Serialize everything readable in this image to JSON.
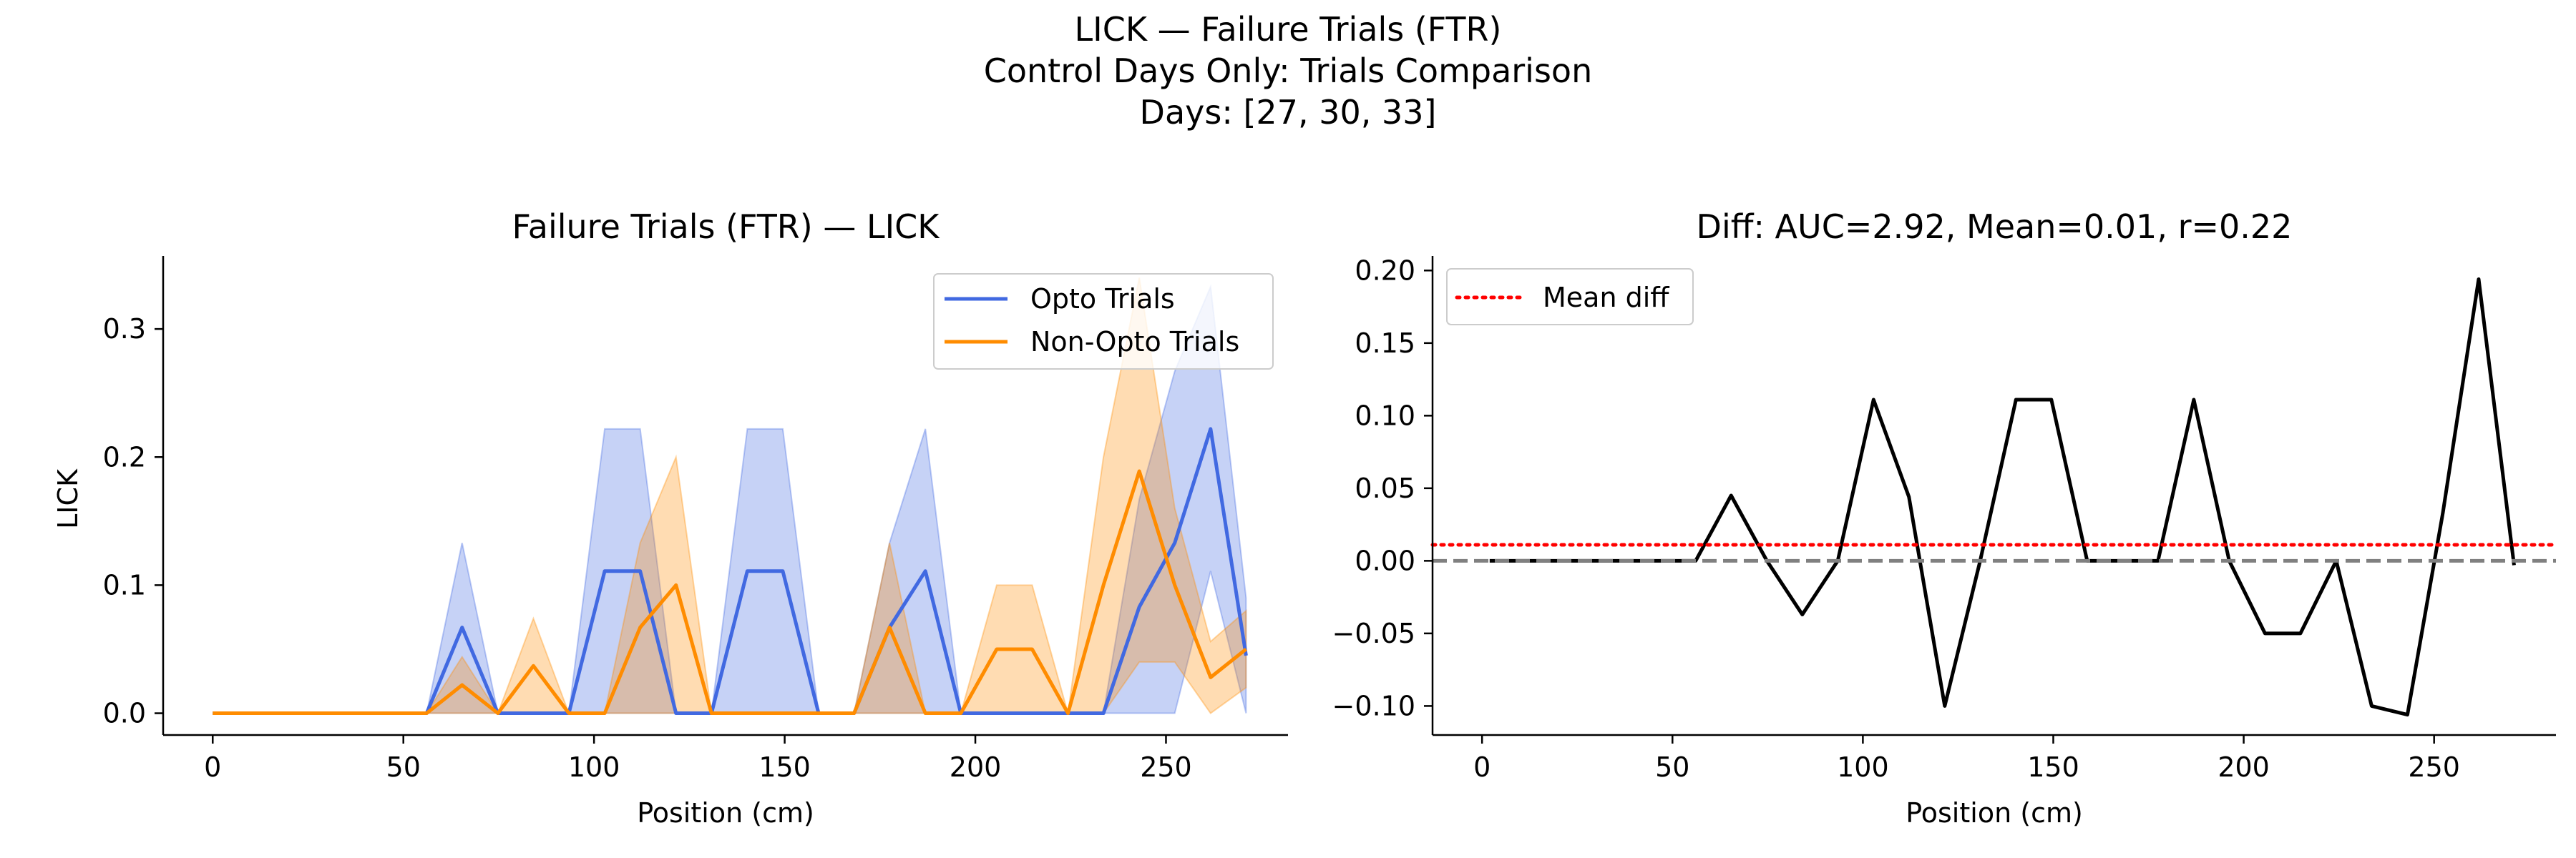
{
  "suptitle": {
    "line1": "LICK — Failure Trials (FTR)",
    "line2": "Control Days Only: Trials Comparison",
    "line3": "Days: [27, 30, 33]"
  },
  "colors": {
    "opto": "#4169e1",
    "non_opto": "#ff8c00",
    "diff": "#000000",
    "mean_diff": "#ff0000",
    "zero_line": "#808080"
  },
  "chart_data": [
    {
      "type": "line",
      "title": "Failure Trials (FTR) — LICK",
      "xlabel": "Position (cm)",
      "ylabel": "LICK",
      "xlim": [
        -13,
        282
      ],
      "ylim": [
        -0.017,
        0.357
      ],
      "xticks": [
        0,
        50,
        100,
        150,
        200,
        250
      ],
      "yticks": [
        0.0,
        0.1,
        0.2,
        0.3
      ],
      "ytick_labels": [
        "0.0",
        "0.1",
        "0.2",
        "0.3"
      ],
      "legend_position": "upper right",
      "x": [
        0,
        9.3,
        18.7,
        28,
        37.4,
        46.7,
        56.1,
        65.4,
        74.8,
        84.1,
        93.4,
        102.8,
        112.1,
        121.5,
        130.8,
        140.2,
        149.5,
        158.9,
        168.2,
        177.5,
        186.9,
        196.2,
        205.6,
        214.9,
        224.3,
        233.6,
        243,
        252.3,
        261.7,
        271
      ],
      "series": [
        {
          "name": "Opto Trials",
          "color": "#4169e1",
          "mean": [
            0,
            0,
            0,
            0,
            0,
            0,
            0,
            0.067,
            0,
            0,
            0,
            0.111,
            0.111,
            0,
            0,
            0.111,
            0.111,
            0,
            0,
            0.067,
            0.111,
            0,
            0,
            0,
            0,
            0,
            0.083,
            0.133,
            0.222,
            0.045
          ],
          "lower": [
            0,
            0,
            0,
            0,
            0,
            0,
            0,
            0,
            0,
            0,
            0,
            0,
            0,
            0,
            0,
            0,
            0,
            0,
            0,
            0,
            0,
            0,
            0,
            0,
            0,
            0,
            0,
            0,
            0.111,
            0
          ],
          "upper": [
            0,
            0,
            0,
            0,
            0,
            0,
            0,
            0.133,
            0,
            0,
            0,
            0.222,
            0.222,
            0,
            0,
            0.222,
            0.222,
            0,
            0,
            0.133,
            0.222,
            0,
            0,
            0,
            0,
            0,
            0.167,
            0.267,
            0.333,
            0.09
          ]
        },
        {
          "name": "Non-Opto Trials",
          "color": "#ff8c00",
          "mean": [
            0,
            0,
            0,
            0,
            0,
            0,
            0,
            0.022,
            0,
            0.037,
            0,
            0,
            0.067,
            0.1,
            0,
            0,
            0,
            0,
            0,
            0.067,
            0,
            0,
            0.05,
            0.05,
            0,
            0.1,
            0.189,
            0.1,
            0.028,
            0.05
          ],
          "lower": [
            0,
            0,
            0,
            0,
            0,
            0,
            0,
            0,
            0,
            0,
            0,
            0,
            0,
            0,
            0,
            0,
            0,
            0,
            0,
            0,
            0,
            0,
            0,
            0,
            0,
            0,
            0.04,
            0.04,
            0,
            0.02
          ],
          "upper": [
            0,
            0,
            0,
            0,
            0,
            0,
            0,
            0.044,
            0,
            0.074,
            0,
            0,
            0.133,
            0.2,
            0,
            0,
            0,
            0,
            0,
            0.133,
            0,
            0,
            0.1,
            0.1,
            0,
            0.2,
            0.34,
            0.16,
            0.056,
            0.08
          ]
        }
      ]
    },
    {
      "type": "line",
      "title": "Diff: AUC=2.92, Mean=0.01, r=0.22",
      "xlabel": "Position (cm)",
      "ylabel": "",
      "xlim": [
        -13,
        282
      ],
      "ylim": [
        -0.12,
        0.21
      ],
      "xticks": [
        0,
        50,
        100,
        150,
        200,
        250
      ],
      "yticks": [
        -0.1,
        -0.05,
        0.0,
        0.05,
        0.1,
        0.15,
        0.2
      ],
      "ytick_labels": [
        "−0.10",
        "−0.05",
        "0.00",
        "0.05",
        "0.10",
        "0.15",
        "0.20"
      ],
      "legend_position": "upper left",
      "mean_diff": 0.011,
      "x": [
        2,
        9.3,
        18.7,
        28,
        37.4,
        46.7,
        56.1,
        65.4,
        74.8,
        84.1,
        93.4,
        102.8,
        112.1,
        121.5,
        130.8,
        140.2,
        149.5,
        158.9,
        168.2,
        177.5,
        186.9,
        196.2,
        205.6,
        214.9,
        224.3,
        233.6,
        243,
        252.3,
        261.7,
        271
      ],
      "series": [
        {
          "name": "Mean diff",
          "color": "#ff0000",
          "values": [
            0,
            0,
            0,
            0,
            0,
            0,
            0,
            0.045,
            0,
            -0.037,
            0,
            0.111,
            0.044,
            -0.1,
            0,
            0.111,
            0.111,
            0,
            0,
            0,
            0.111,
            0,
            -0.05,
            -0.05,
            0,
            -0.1,
            -0.106,
            0.033,
            0.194,
            -0.003
          ]
        }
      ]
    }
  ]
}
